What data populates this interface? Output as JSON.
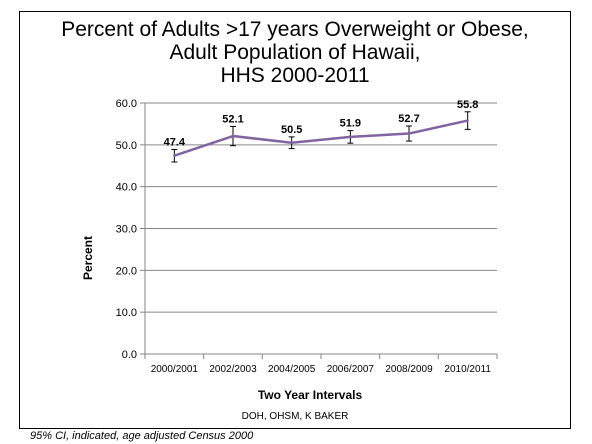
{
  "chart_data": {
    "type": "line",
    "title_lines": [
      "Percent of Adults >17 years Overweight or Obese,",
      "Adult Population of Hawaii,",
      "HHS 2000-2011"
    ],
    "xlabel": "Two Year Intervals",
    "ylabel": "Percent",
    "categories": [
      "2000/2001",
      "2002/2003",
      "2004/2005",
      "2006/2007",
      "2008/2009",
      "2010/2011"
    ],
    "values": [
      47.4,
      52.1,
      50.5,
      51.9,
      52.7,
      55.8
    ],
    "data_labels": [
      "47.4",
      "52.1",
      "50.5",
      "51.9",
      "52.7",
      "55.8"
    ],
    "ci_lower": [
      45.9,
      49.8,
      49.1,
      50.4,
      50.9,
      53.7
    ],
    "ci_upper": [
      48.9,
      54.4,
      51.9,
      53.4,
      54.5,
      57.9
    ],
    "ylim": [
      0,
      60
    ],
    "yticks": [
      0,
      10,
      20,
      30,
      40,
      50,
      60
    ],
    "ytick_labels": [
      "0.0",
      "10.0",
      "20.0",
      "30.0",
      "40.0",
      "50.0",
      "60.0"
    ],
    "grid": true,
    "line_color": "#8064A2",
    "credit": "DOH, OHSM, K BAKER",
    "footnote": "95% CI, indicated, age adjusted Census 2000"
  }
}
